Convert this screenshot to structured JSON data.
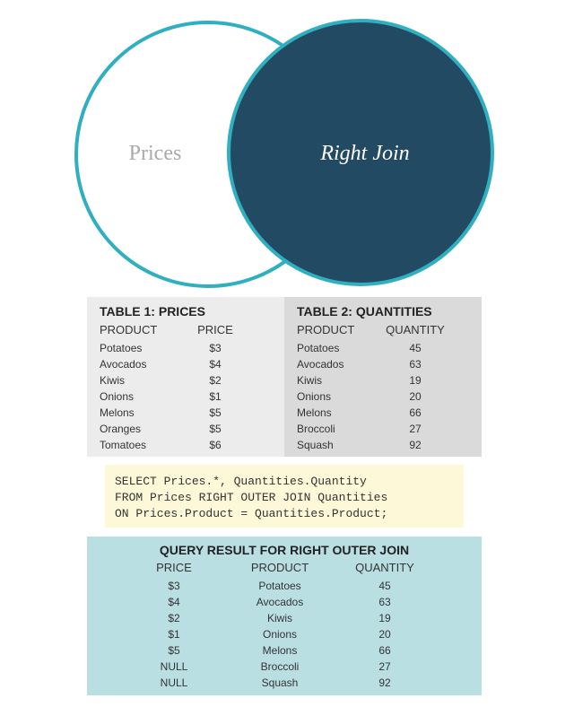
{
  "venn": {
    "left_label": "Prices",
    "right_label": "Right Join",
    "colors": {
      "outline": "#2fafbf",
      "fill": "#234a63",
      "left_text": "#aaaaaa",
      "right_text": "#ffffff"
    }
  },
  "prices_table": {
    "title": "TABLE 1: PRICES",
    "headers": [
      "PRODUCT",
      "PRICE"
    ],
    "rows": [
      [
        "Potatoes",
        "$3"
      ],
      [
        "Avocados",
        "$4"
      ],
      [
        "Kiwis",
        "$2"
      ],
      [
        "Onions",
        "$1"
      ],
      [
        "Melons",
        "$5"
      ],
      [
        "Oranges",
        "$5"
      ],
      [
        "Tomatoes",
        "$6"
      ]
    ]
  },
  "quantities_table": {
    "title": "TABLE 2: QUANTITIES",
    "headers": [
      "PRODUCT",
      "QUANTITY"
    ],
    "rows": [
      [
        "Potatoes",
        "45"
      ],
      [
        "Avocados",
        "63"
      ],
      [
        "Kiwis",
        "19"
      ],
      [
        "Onions",
        "20"
      ],
      [
        "Melons",
        "66"
      ],
      [
        "Broccoli",
        "27"
      ],
      [
        "Squash",
        "92"
      ]
    ]
  },
  "sql": {
    "lines": [
      "SELECT Prices.*, Quantities.Quantity",
      "FROM Prices RIGHT OUTER JOIN Quantities",
      "ON Prices.Product = Quantities.Product;"
    ]
  },
  "result": {
    "title": "QUERY RESULT FOR RIGHT OUTER JOIN",
    "headers": [
      "PRICE",
      "PRODUCT",
      "QUANTITY"
    ],
    "rows": [
      [
        "$3",
        "Potatoes",
        "45"
      ],
      [
        "$4",
        "Avocados",
        "63"
      ],
      [
        "$2",
        "Kiwis",
        "19"
      ],
      [
        "$1",
        "Onions",
        "20"
      ],
      [
        "$5",
        "Melons",
        "66"
      ],
      [
        "NULL",
        "Broccoli",
        "27"
      ],
      [
        "NULL",
        "Squash",
        "92"
      ]
    ]
  }
}
